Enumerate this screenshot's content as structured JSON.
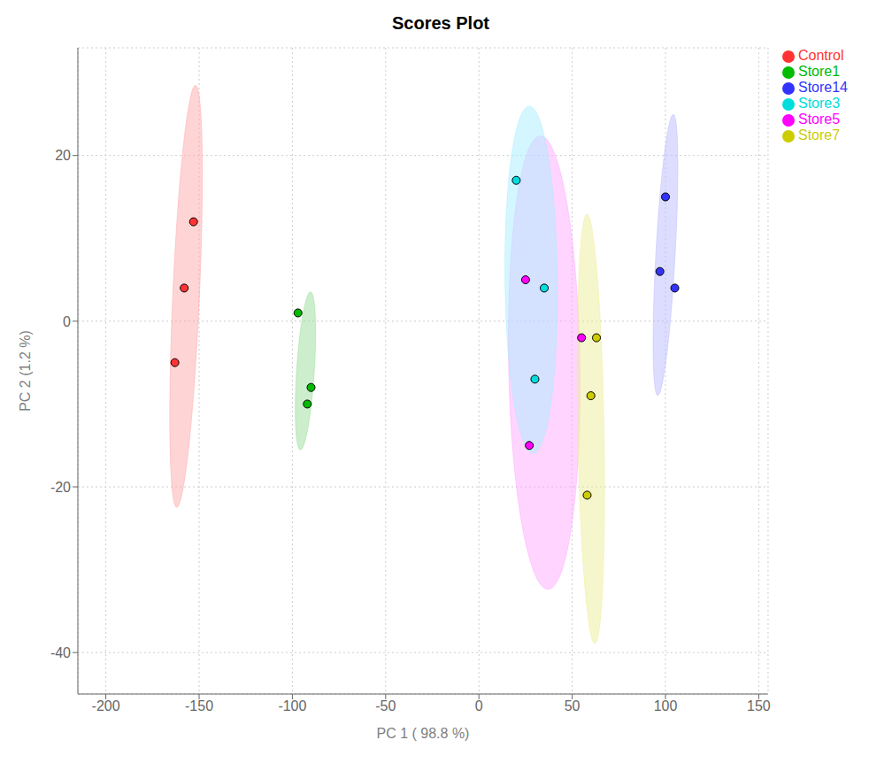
{
  "chart_data": {
    "type": "scatter",
    "title": "Scores Plot",
    "xlabel": "PC 1 ( 98.8 %)",
    "ylabel": "PC 2 (1.2 %)",
    "xlim": [
      -215,
      155
    ],
    "ylim": [
      -45,
      33
    ],
    "xticks": [
      -200,
      -150,
      -100,
      -50,
      0,
      50,
      100,
      150
    ],
    "yticks": [
      -40,
      -20,
      0,
      20
    ],
    "grid": true,
    "legend": "upper right",
    "marker": "circle",
    "series": [
      {
        "name": "Control",
        "color": "#ff3333",
        "points": [
          [
            -153,
            12
          ],
          [
            -158,
            4
          ],
          [
            -163,
            -5
          ]
        ],
        "ellipse": {
          "cx": -157,
          "cy": 3,
          "w": 14,
          "h": 52,
          "angle": -12,
          "color": "#ffaaaa"
        }
      },
      {
        "name": "Store1",
        "color": "#00bb00",
        "points": [
          [
            -97,
            1
          ],
          [
            -90,
            -8
          ],
          [
            -92,
            -10
          ]
        ],
        "ellipse": {
          "cx": -93,
          "cy": -6,
          "w": 9,
          "h": 20,
          "angle": -20,
          "color": "#99dd99"
        }
      },
      {
        "name": "Store14",
        "color": "#3333ff",
        "points": [
          [
            100,
            15
          ],
          [
            97,
            6
          ],
          [
            105,
            4
          ]
        ],
        "ellipse": {
          "cx": 100,
          "cy": 8,
          "w": 10,
          "h": 35,
          "angle": -15,
          "color": "#bbbbff"
        }
      },
      {
        "name": "Store3",
        "color": "#00dddd",
        "points": [
          [
            20,
            17
          ],
          [
            35,
            4
          ],
          [
            30,
            -7
          ]
        ],
        "ellipse": {
          "cx": 28,
          "cy": 5,
          "w": 28,
          "h": 42,
          "angle": 5,
          "color": "#aaeeff"
        }
      },
      {
        "name": "Store5",
        "color": "#ff00ff",
        "points": [
          [
            25,
            5
          ],
          [
            27,
            -15
          ],
          [
            55,
            -2
          ]
        ],
        "ellipse": {
          "cx": 35,
          "cy": -5,
          "w": 38,
          "h": 55,
          "angle": 8,
          "color": "#ffaaff"
        }
      },
      {
        "name": "Store7",
        "color": "#cccc00",
        "points": [
          [
            60,
            -9
          ],
          [
            63,
            -2
          ],
          [
            58,
            -21
          ]
        ],
        "ellipse": {
          "cx": 60,
          "cy": -13,
          "w": 14,
          "h": 52,
          "angle": 5,
          "color": "#eeee99"
        }
      }
    ]
  }
}
